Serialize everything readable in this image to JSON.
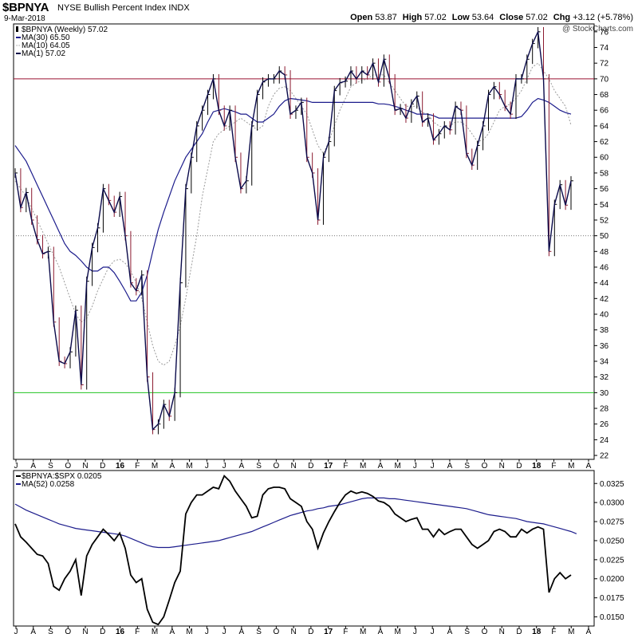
{
  "header": {
    "symbol": "$BPNYA",
    "name": "NYSE Bullish Percent Index",
    "exchange": "INDX",
    "date": "9-Mar-2018",
    "watermark": "@ StockCharts.com",
    "open_label": "Open",
    "open": "53.87",
    "high_label": "High",
    "high": "57.02",
    "low_label": "Low",
    "low": "53.64",
    "close_label": "Close",
    "close": "57.02",
    "chg_label": "Chg",
    "chg": "+3.12 (+5.78%)"
  },
  "colors": {
    "up_bar": "#000000",
    "down_bar": "#8b1a2f",
    "ma30": "#1c1c8c",
    "ma10": "#9a9a9a",
    "ma1": "#0a0a4a",
    "line70": "#9b1030",
    "line30": "#22c522",
    "ratio_line": "#000000",
    "ratio_ma": "#1c1c8c"
  },
  "chart_data": [
    {
      "type": "line",
      "panel": "price",
      "legend": {
        "main": "$BPNYA (Weekly) 57.02",
        "ma30": "MA(30) 65.50",
        "ma10": "MA(10) 64.05",
        "ma1": "MA(1) 57.02"
      },
      "y_ticks": [
        22,
        24,
        26,
        28,
        30,
        32,
        34,
        36,
        38,
        40,
        42,
        44,
        46,
        48,
        50,
        52,
        54,
        56,
        58,
        60,
        62,
        64,
        66,
        68,
        70,
        72,
        74,
        76
      ],
      "ylim": [
        21.5,
        77
      ],
      "reference_lines": [
        70,
        50,
        30
      ],
      "x_labels": [
        "J",
        "A",
        "S",
        "O",
        "N",
        "D",
        "16",
        "F",
        "M",
        "A",
        "M",
        "J",
        "J",
        "A",
        "S",
        "O",
        "N",
        "D",
        "17",
        "F",
        "M",
        "A",
        "M",
        "J",
        "J",
        "A",
        "S",
        "O",
        "N",
        "D",
        "18",
        "F",
        "M",
        "A"
      ],
      "close": [
        58.0,
        53.6,
        55.5,
        52.0,
        49.5,
        47.7,
        48.0,
        39.0,
        34.0,
        33.7,
        35.2,
        40.5,
        31.0,
        44.2,
        48.5,
        51.0,
        56.0,
        54.5,
        53.0,
        55.0,
        50.0,
        44.0,
        43.0,
        45.0,
        32.0,
        25.3,
        26.0,
        28.5,
        27.0,
        30.0,
        44.0,
        56.0,
        60.0,
        64.0,
        66.0,
        68.0,
        70.0,
        66.0,
        64.0,
        66.0,
        60.0,
        56.0,
        57.0,
        64.0,
        68.0,
        69.6,
        70.0,
        70.0,
        71.0,
        70.5,
        65.5,
        66.0,
        67.0,
        60.0,
        58.0,
        52.0,
        60.0,
        62.0,
        68.5,
        69.5,
        69.7,
        71.0,
        70.0,
        71.0,
        70.5,
        72.0,
        69.6,
        72.5,
        70.0,
        66.0,
        66.2,
        65.0,
        66.8,
        67.8,
        64.5,
        65.0,
        62.2,
        63.0,
        64.0,
        63.5,
        66.5,
        66.0,
        60.5,
        59.0,
        61.5,
        64.0,
        68.0,
        69.0,
        68.0,
        66.5,
        65.5,
        70.0,
        70.0,
        72.5,
        74.5,
        76.0,
        70.0,
        48.0,
        54.0,
        56.5,
        53.9,
        57.0
      ],
      "ma30": [
        61.5,
        60.5,
        59.5,
        58.0,
        56.5,
        55.0,
        53.5,
        52.0,
        50.5,
        49.0,
        48.0,
        47.5,
        46.8,
        46.0,
        45.5,
        45.5,
        46.0,
        46.0,
        45.3,
        44.2,
        43.0,
        41.7,
        41.7,
        42.8,
        45.0,
        48.0,
        50.8,
        53.0,
        55.0,
        57.0,
        58.5,
        60.0,
        61.0,
        62.0,
        63.0,
        64.5,
        65.8,
        66.0,
        66.2,
        66.0,
        65.8,
        65.5,
        65.5,
        65.0,
        64.5,
        64.5,
        65.0,
        65.5,
        66.5,
        67.2,
        67.5,
        67.4,
        67.3,
        67.2,
        67.0,
        67.0,
        67.0,
        67.0,
        67.0,
        67.0,
        67.0,
        67.0,
        67.0,
        67.0,
        67.0,
        67.0,
        66.8,
        66.8,
        66.7,
        66.5,
        66.3,
        66.0,
        65.8,
        65.5,
        65.5,
        65.5,
        65.3,
        65.0,
        65.0,
        65.0,
        65.0,
        65.0,
        65.0,
        65.0,
        65.0,
        65.0,
        65.0,
        65.0,
        65.0,
        65.0,
        65.0,
        65.0,
        65.2,
        66.0,
        67.0,
        67.5,
        67.3,
        67.0,
        66.5,
        66.0,
        65.7,
        65.5
      ],
      "ma10": [
        57.0,
        56.0,
        55.0,
        53.5,
        52.0,
        50.5,
        49.0,
        47.5,
        46.0,
        44.0,
        42.0,
        40.0,
        39.0,
        39.5,
        41.0,
        43.0,
        44.5,
        46.0,
        46.8,
        47.0,
        46.5,
        45.5,
        44.0,
        42.0,
        39.0,
        36.0,
        34.0,
        33.5,
        34.0,
        36.0,
        38.5,
        42.0,
        46.0,
        50.0,
        55.0,
        58.5,
        62.0,
        63.0,
        63.5,
        64.0,
        64.5,
        65.0,
        64.5,
        64.0,
        63.5,
        64.0,
        66.5,
        68.0,
        68.8,
        69.0,
        68.5,
        67.5,
        66.5,
        65.5,
        63.5,
        61.5,
        60.5,
        62.0,
        64.0,
        66.0,
        67.5,
        69.0,
        69.5,
        69.8,
        70.0,
        70.5,
        70.5,
        70.5,
        69.5,
        68.5,
        67.5,
        66.5,
        66.5,
        66.5,
        65.7,
        65.5,
        64.5,
        64.0,
        63.8,
        64.0,
        64.5,
        64.5,
        64.0,
        63.0,
        62.0,
        62.2,
        63.0,
        64.5,
        66.0,
        66.5,
        66.8,
        67.5,
        68.5,
        70.0,
        71.5,
        72.0,
        71.0,
        70.0,
        68.5,
        67.5,
        66.5,
        64.1
      ]
    },
    {
      "type": "line",
      "panel": "ratio",
      "legend": {
        "main": "$BPNYA:$SPX 0.0205",
        "ma52": "MA(52) 0.0258"
      },
      "y_ticks": [
        "0.0150",
        "0.0175",
        "0.0200",
        "0.0225",
        "0.0250",
        "0.0275",
        "0.0300",
        "0.0325"
      ],
      "ylim": [
        0.0138,
        0.0342
      ],
      "values": [
        0.0272,
        0.0255,
        0.0248,
        0.024,
        0.0232,
        0.023,
        0.022,
        0.019,
        0.0185,
        0.02,
        0.021,
        0.0225,
        0.0178,
        0.023,
        0.0245,
        0.0255,
        0.0265,
        0.0258,
        0.025,
        0.026,
        0.024,
        0.0205,
        0.0195,
        0.02,
        0.016,
        0.0143,
        0.014,
        0.015,
        0.0172,
        0.0195,
        0.021,
        0.0285,
        0.03,
        0.031,
        0.031,
        0.0315,
        0.032,
        0.0318,
        0.0335,
        0.0328,
        0.0315,
        0.0305,
        0.0295,
        0.028,
        0.0282,
        0.031,
        0.0318,
        0.032,
        0.032,
        0.0318,
        0.0305,
        0.03,
        0.0295,
        0.0275,
        0.0265,
        0.024,
        0.026,
        0.0275,
        0.0288,
        0.03,
        0.031,
        0.0315,
        0.0312,
        0.0314,
        0.0312,
        0.0308,
        0.0302,
        0.03,
        0.0295,
        0.0285,
        0.028,
        0.0275,
        0.0278,
        0.028,
        0.0265,
        0.0265,
        0.0255,
        0.0265,
        0.0258,
        0.0262,
        0.0265,
        0.0265,
        0.0255,
        0.0245,
        0.024,
        0.0245,
        0.025,
        0.0262,
        0.0265,
        0.0262,
        0.0255,
        0.0255,
        0.0265,
        0.026,
        0.0265,
        0.0268,
        0.0265,
        0.0182,
        0.02,
        0.0208,
        0.02,
        0.0205
      ],
      "ma52": [
        0.0298,
        0.0294,
        0.029,
        0.0287,
        0.0284,
        0.0281,
        0.0278,
        0.0275,
        0.0272,
        0.027,
        0.0268,
        0.0266,
        0.0265,
        0.0264,
        0.0263,
        0.0262,
        0.0261,
        0.026,
        0.0259,
        0.0258,
        0.0256,
        0.0253,
        0.025,
        0.0247,
        0.0244,
        0.0242,
        0.0241,
        0.0241,
        0.0241,
        0.0242,
        0.0243,
        0.0244,
        0.0245,
        0.0246,
        0.0247,
        0.0248,
        0.0249,
        0.025,
        0.0252,
        0.0254,
        0.0256,
        0.0258,
        0.026,
        0.0262,
        0.0265,
        0.0268,
        0.0271,
        0.0274,
        0.0277,
        0.028,
        0.0283,
        0.0285,
        0.0287,
        0.0289,
        0.029,
        0.0292,
        0.0293,
        0.0295,
        0.0296,
        0.0297,
        0.0299,
        0.0301,
        0.0303,
        0.0305,
        0.0306,
        0.0306,
        0.0306,
        0.0306,
        0.0305,
        0.0305,
        0.0304,
        0.0303,
        0.0302,
        0.0301,
        0.03,
        0.0299,
        0.0298,
        0.0297,
        0.0296,
        0.0295,
        0.0294,
        0.0293,
        0.0292,
        0.029,
        0.0288,
        0.0286,
        0.0284,
        0.0283,
        0.0282,
        0.0281,
        0.028,
        0.0279,
        0.0277,
        0.0275,
        0.0274,
        0.0273,
        0.0272,
        0.027,
        0.0268,
        0.0266,
        0.0264,
        0.0262,
        0.0259
      ]
    }
  ]
}
